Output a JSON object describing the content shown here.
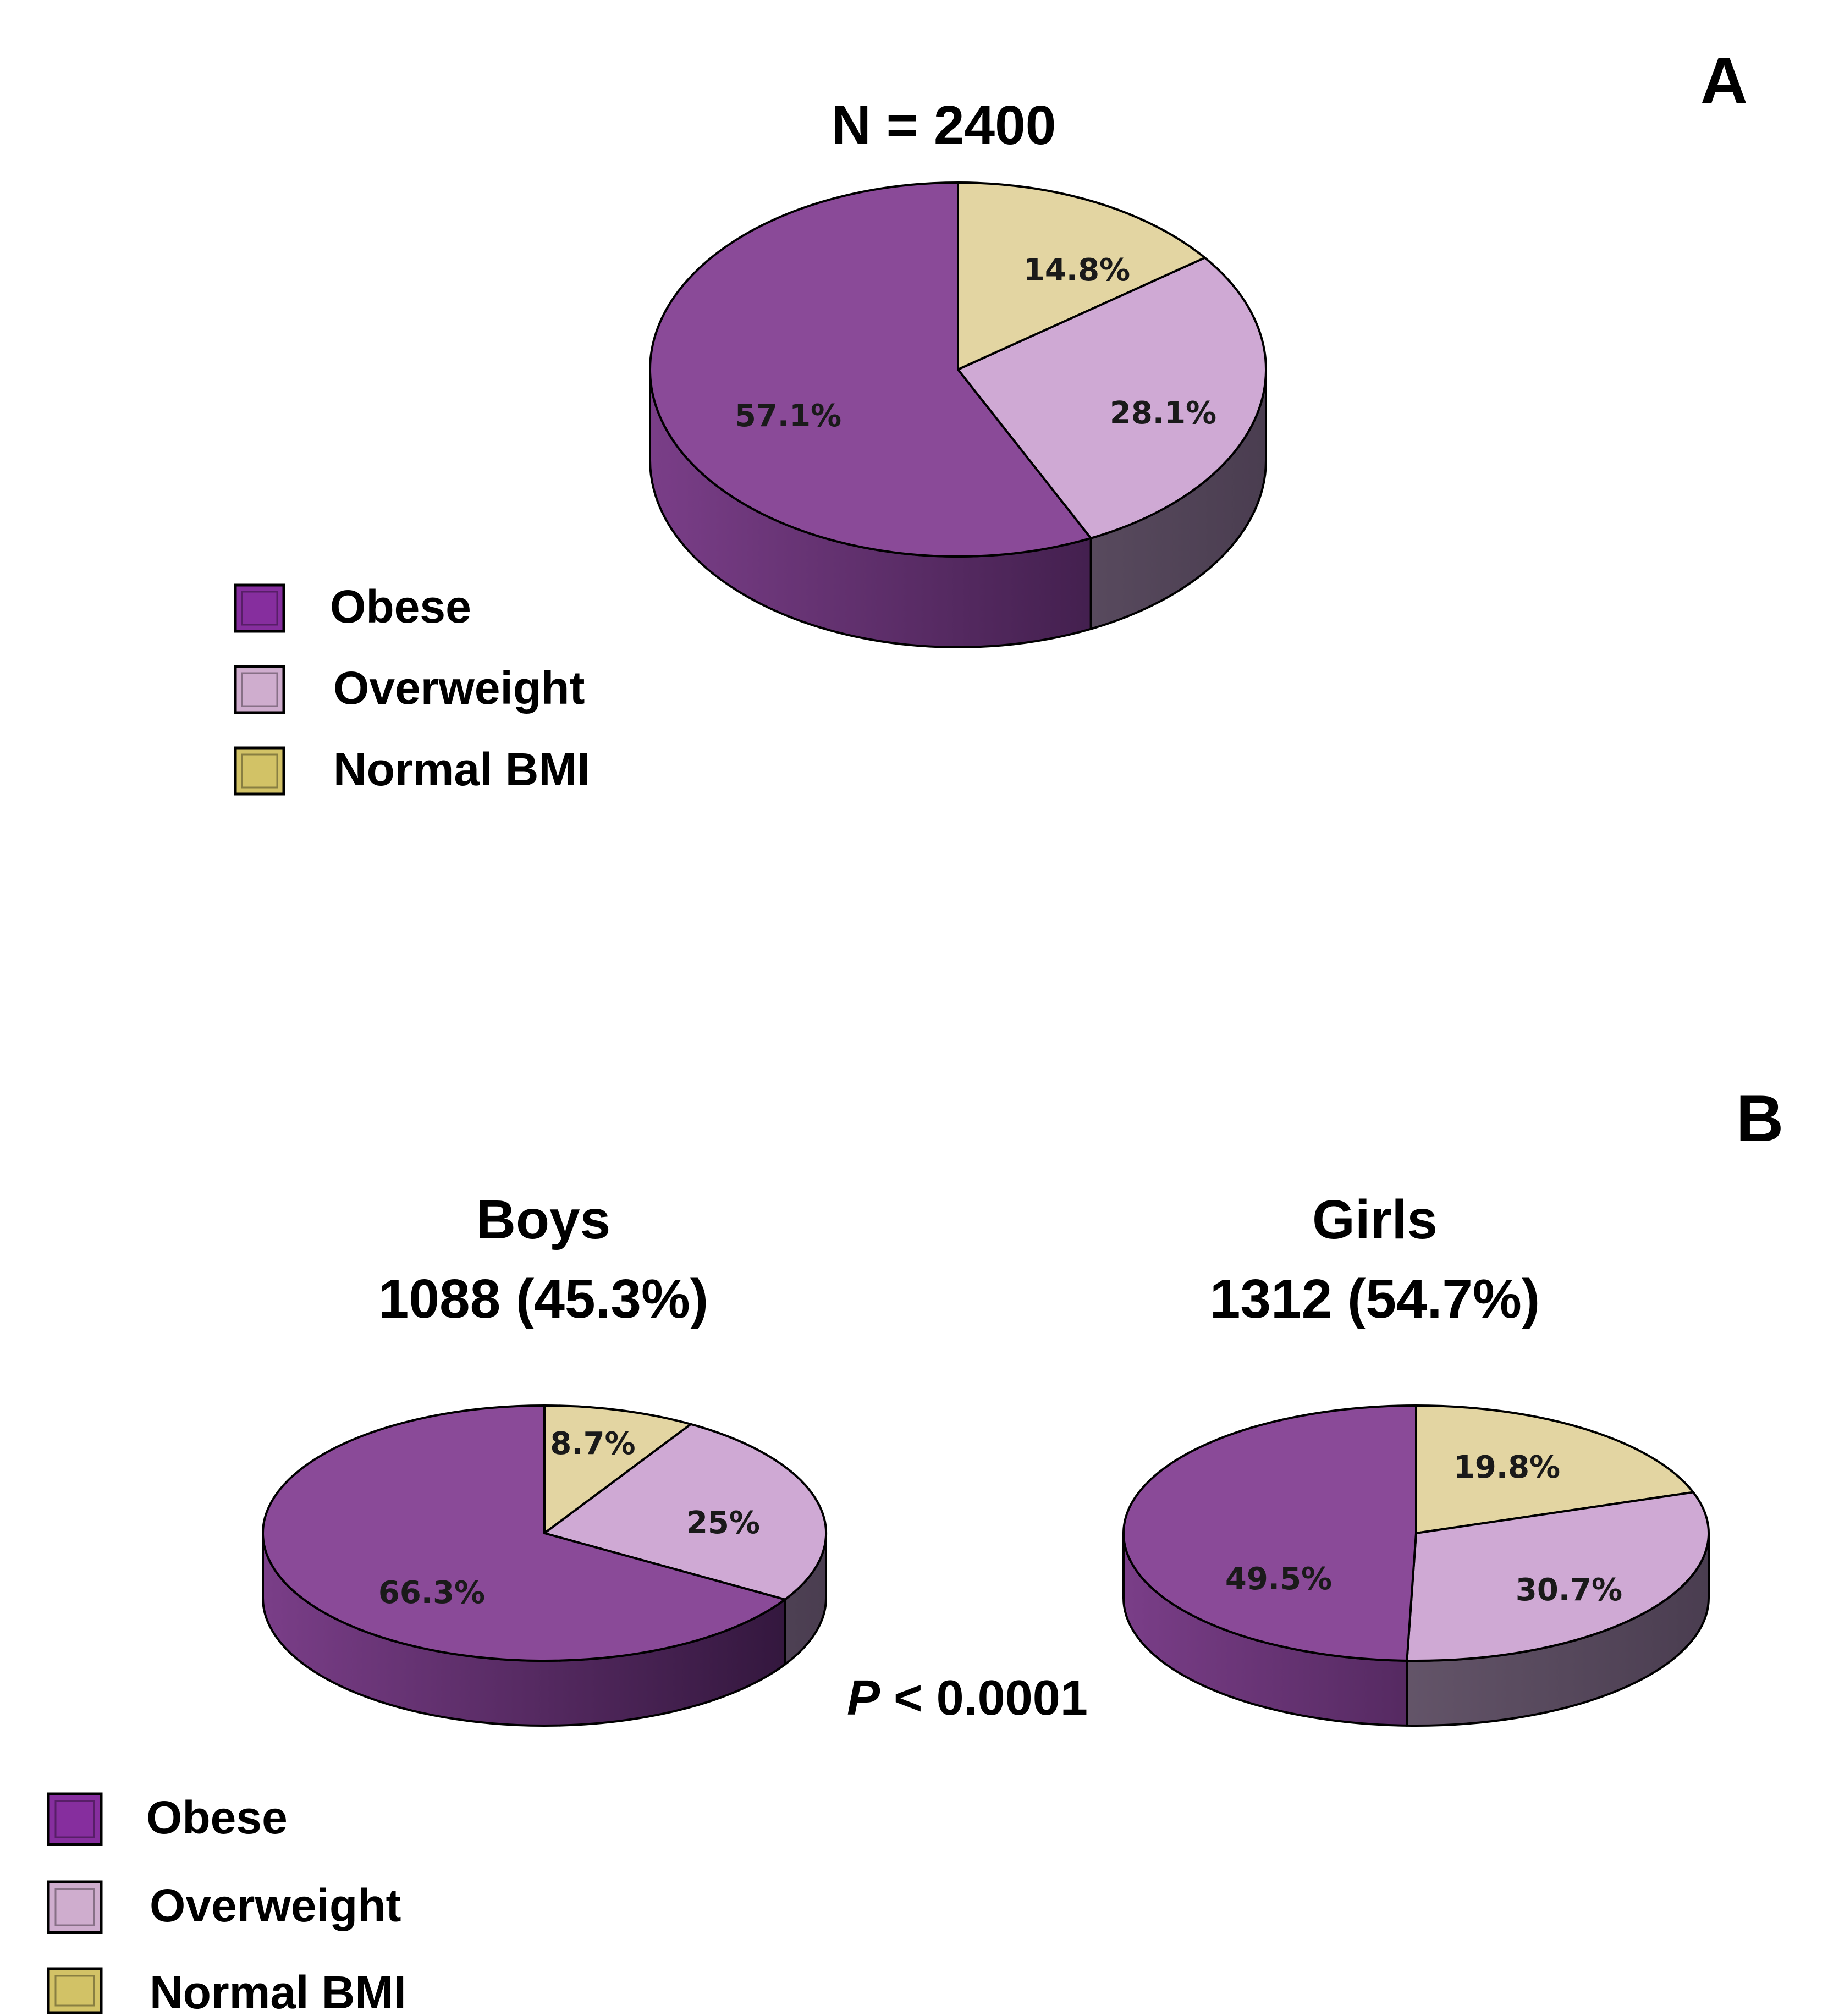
{
  "colors": {
    "obese": "#8a4a98",
    "obese_side_light": "#7a3e88",
    "obese_side_dark": "#2e1438",
    "overweight": "#cfa9d4",
    "overweight_side_light": "#7b6a80",
    "overweight_side_dark": "#4a3d50",
    "normal": "#e3d5a2",
    "legend_obese": "#862e9e",
    "legend_overweight": "#cfadce",
    "legend_normal": "#d2c266",
    "edge": "#000000"
  },
  "panels": {
    "a": {
      "letter": "A"
    },
    "b": {
      "letter": "B"
    }
  },
  "legend": {
    "items": [
      {
        "key": "obese",
        "label": "Obese"
      },
      {
        "key": "overweight",
        "label": "Overweight"
      },
      {
        "key": "normal",
        "label": "Normal BMI"
      }
    ]
  },
  "pvalue": {
    "symbol": "P",
    "text": " < 0.0001"
  },
  "chart_data": [
    {
      "type": "pie",
      "panel": "A",
      "title": "N = 2400",
      "categories": [
        "Normal BMI",
        "Overweight",
        "Obese"
      ],
      "values": [
        14.8,
        28.1,
        57.1
      ],
      "labels": [
        "14.8%",
        "28.1%",
        "57.1%"
      ]
    },
    {
      "type": "pie",
      "panel": "B",
      "title": "Boys",
      "subtitle": "1088 (45.3%)",
      "categories": [
        "Normal BMI",
        "Overweight",
        "Obese"
      ],
      "values": [
        8.7,
        25,
        66.3
      ],
      "labels": [
        "8.7%",
        "25%",
        "66.3%"
      ]
    },
    {
      "type": "pie",
      "panel": "B",
      "title": "Girls",
      "subtitle": "1312 (54.7%)",
      "categories": [
        "Normal BMI",
        "Overweight",
        "Obese"
      ],
      "values": [
        19.8,
        30.7,
        49.5
      ],
      "labels": [
        "19.8%",
        "30.7%",
        "49.5%"
      ]
    }
  ]
}
